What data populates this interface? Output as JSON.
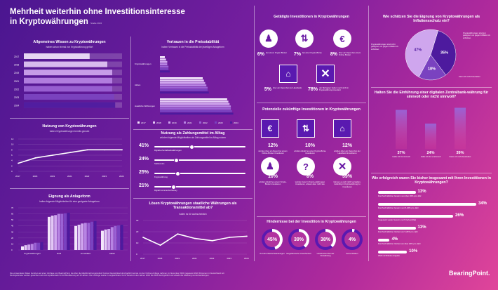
{
  "header": {
    "title_line1": "Mehrheit weiterhin ohne Investitionsinteresse",
    "title_line2": "in Kryptowährungen",
    "source": "Studie 2024"
  },
  "wissen": {
    "title": "Allgemeines Wissen zu Kryptowährungen",
    "subtitle": "haben schon einmal von Kryptowährung gehört"
  },
  "nutzung": {
    "title": "Nutzung von Kryptowährungen",
    "subtitle": "haben Kryptowährungen bereits genutzt"
  },
  "eignung": {
    "title": "Eignung als Anlageform",
    "subtitle": "halten folgende Möglichkeiten für eine geeignete Anlageform"
  },
  "vertrauen": {
    "title": "Vertrauen in die Preisstabilität",
    "subtitle": "haben Vertrauen in die Preisstabilität der jeweiligen Anlageform"
  },
  "zahlung": {
    "title": "Nutzung als Zahlungsmittel im Alltag",
    "subtitle": "würden folgende Möglichkeiten als Zahlungsmittel im Alltag nutzen",
    "items": [
      {
        "pct": "41%",
        "label": "Digitale Zentralbankwährungen",
        "value": 41
      },
      {
        "pct": "24%",
        "label": "Stablecoins",
        "value": 24
      },
      {
        "pct": "25%",
        "label": "Kryptowährung",
        "value": 25
      },
      {
        "pct": "21%",
        "label": "Digital Commercial Money",
        "value": 21
      }
    ]
  },
  "loesen": {
    "title": "Lösen Kryptowährungen staatliche Währungen als Transaktionsmittel ab?",
    "subtitle": "halten es für wahrscheinlich"
  },
  "getaetigt": {
    "title": "Getätigte Investitionen in Kryptowährungen",
    "items": [
      {
        "pct": "6%",
        "desc": "bei einem Krypto Broker"
      },
      {
        "pct": "7%",
        "desc": "bei einer Krypto-Börse"
      },
      {
        "pct": "8%",
        "desc": "über ein Depot bei einem Online Broker"
      },
      {
        "pct": "5%",
        "desc": "über ein Depot bei der Hausbank"
      },
      {
        "pct": "78%",
        "desc": "der Befragten haben noch nicht in Kryptowährung investiert"
      }
    ]
  },
  "potenziell": {
    "title": "Potenzielle zukünftige Investitionen in Kryptowährungen",
    "items": [
      {
        "pct": "12%",
        "desc": "würden über ein Depot bei einem Online-Broker investieren"
      },
      {
        "pct": "10%",
        "desc": "würden direkt bei einer Krypto-Börse investieren"
      },
      {
        "pct": "12%",
        "desc": "würden über ein Depot bei der Hausbank investieren"
      },
      {
        "pct": "10%",
        "desc": "würden direkt bei einem Krypto-Broker investieren"
      },
      {
        "pct": "8%",
        "desc": "würden zwar in Krypto-währungen investieren, wissen aber nicht wie"
      },
      {
        "pct": "59%",
        "desc": "können es sich nicht vorstellen, zukünftig in Kryptowährung zu investieren"
      }
    ]
  },
  "hindernis": {
    "title": "Hindernisse bei der Investition in Kryptowährungen",
    "items": [
      {
        "pct": "45%",
        "label": "Zu hohe Wertschwankungen",
        "value": 45
      },
      {
        "pct": "39%",
        "label": "Regulatorische Unsicherheit",
        "value": 39
      },
      {
        "pct": "38%",
        "label": "Unsicherheit bei der Verwahrung",
        "value": 38
      },
      {
        "pct": "4%",
        "label": "Keine Risiken",
        "value": 4
      }
    ]
  },
  "inflation": {
    "title": "Wie schätzen Sie die Eignung von Kryptowährungen als Inflationsschutz ein?",
    "label_left": "Kryptowährungen sind nicht geeignet, um gegen Inflation zu schützen.",
    "label_right": "Kryptowährungen sind gut geeignet, um gegen Inflation zu schützen.",
    "label_bottom": "Kann ich nicht beurteilen"
  },
  "zentralbank": {
    "title": "Halten Sie die Einführung einer digitalen Zentralbank-währung für sinnvoll oder nicht sinnvoll?",
    "items": [
      {
        "pct": "37%",
        "label": "Halte ich für sinnvoll",
        "value": 37
      },
      {
        "pct": "24%",
        "label": "Halte ich für unsinnvoll",
        "value": 24
      },
      {
        "pct": "39%",
        "label": "Kann ich nicht beurteilen",
        "value": 39
      }
    ]
  },
  "erfolg": {
    "title": "Wie erfolgreich waren Sie bisher insgesamt mit Ihren Investitionen in Kryptowährungen?",
    "items": [
      {
        "pct": "13%",
        "label": "Durchschnittlicher Gewinn von über 20% pro Jahr",
        "value": 13
      },
      {
        "pct": "34%",
        "label": "Durchschnittlicher Gewinn von 5-20% pro Jahr",
        "value": 34
      },
      {
        "pct": "26%",
        "label": "Insgesamt weder Gewinn noch Verlust (flat)",
        "value": 26
      },
      {
        "pct": "13%",
        "label": "Durchschnittlicher Verlust von 5-20% pro Jahr",
        "value": 13
      },
      {
        "pct": "4%",
        "label": "Durchschnittlicher Verlust von über 20% pro Jahr",
        "value": 4
      },
      {
        "pct": "10%",
        "label": "Weiß nicht/keine Angabe",
        "value": 10
      }
    ]
  },
  "footer": {
    "line1": "Die verwendeten Daten beruhen auf einer Umfrage von BearingPoint, die über die Marktforschungsinstitut YouGov Deutschland durchgeführt wurde. An der Online-Umfrage nahmen im November 2024 insgesamt 2022 Personen in Deutschland teil.",
    "line2": "Die Ergebnisse wurden gewichtet und sind repräsentativ für die Bevölkerung ab 18 Jahren. Die Umfrage wurde in vergleichbarer Form bereits in den Jahren 2016 bis 2023 durchgeführt und erlaubt die Ableitung von Entwicklungen.",
    "brand": "BearingPoint."
  },
  "legend_years": [
    "2017",
    "2018",
    "2019",
    "2021",
    "2022",
    "2023",
    "2024"
  ],
  "colors": {
    "accent": "#ffffff",
    "dark": "#4a1690",
    "pink": "#e0459a"
  },
  "chart_data": [
    {
      "type": "bar",
      "id": "wissen",
      "categories": [
        "2017",
        "2018",
        "2019",
        "2021",
        "2022",
        "2023",
        "2024"
      ],
      "values": [
        67,
        85,
        90,
        90,
        90,
        92,
        93
      ],
      "xlim": [
        0,
        100
      ]
    },
    {
      "type": "line",
      "id": "nutzung",
      "x": [
        "2017",
        "2018",
        "2019",
        "2021",
        "2022",
        "2023",
        "2024"
      ],
      "values": [
        3,
        5,
        6,
        7,
        8,
        8,
        8
      ],
      "ylim": [
        0,
        12
      ]
    },
    {
      "type": "bar",
      "id": "eignung",
      "categories": [
        "Kryptowährungen",
        "Gold",
        "Immobilien",
        "Aktien"
      ],
      "series_count": 7,
      "values": [
        [
          6,
          8,
          9,
          10,
          12,
          12,
          13
        ],
        [
          55,
          57,
          58,
          60,
          60,
          61,
          62
        ],
        [
          40,
          42,
          44,
          45,
          45,
          47,
          48
        ],
        [
          32,
          34,
          35,
          38,
          40,
          41,
          42
        ]
      ],
      "ylim": [
        0,
        70
      ]
    },
    {
      "type": "bar",
      "id": "vertrauen",
      "categories": [
        "Kryptowährungen",
        "Aktien",
        "staatliche Währungen"
      ],
      "series_count": 7,
      "values": [
        [
          4,
          5,
          6,
          6,
          7,
          7,
          8
        ],
        [
          35,
          36,
          37,
          38,
          39,
          39,
          40
        ],
        [
          55,
          56,
          57,
          58,
          58,
          59,
          60
        ]
      ],
      "xlim": [
        0,
        70
      ]
    },
    {
      "type": "line",
      "id": "loesen",
      "x": [
        "2017",
        "2018",
        "2019",
        "2021",
        "2022",
        "2023",
        "2024"
      ],
      "values": [
        15,
        8,
        18,
        14,
        12,
        15,
        16
      ],
      "ylim": [
        0,
        30
      ]
    },
    {
      "type": "pie",
      "id": "inflation",
      "values": [
        35,
        18,
        47
      ]
    }
  ]
}
